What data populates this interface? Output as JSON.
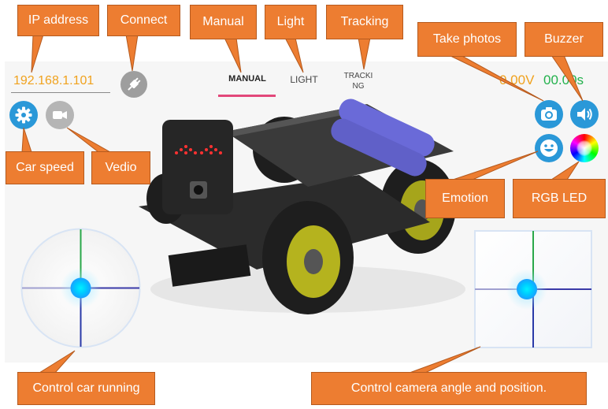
{
  "app": {
    "ip_address": "192.168.1.101",
    "tabs": [
      {
        "label": "MANUAL",
        "active": true
      },
      {
        "label": "LIGHT",
        "active": false
      },
      {
        "label": "TRACKING",
        "active": false
      }
    ],
    "status": {
      "voltage": "0.00V",
      "time": "00.00s"
    },
    "colors": {
      "accent_blue": "#2a98d8",
      "ip_orange": "#f0a21e",
      "tab_indicator": "#e2487a",
      "callout": "#ed7d31",
      "status_green": "#22b14c"
    },
    "icons": {
      "connect": "plug-icon",
      "car_speed": "gear-icon",
      "video": "video-camera-icon",
      "take_photos": "camera-icon",
      "buzzer": "speaker-icon",
      "emotion": "smiley-icon",
      "rgb_led": "color-wheel-icon"
    }
  },
  "callouts": {
    "ip_address": "IP address",
    "connect": "Connect",
    "manual": "Manual",
    "light": "Light",
    "tracking": "Tracking",
    "take_photos": "Take photos",
    "buzzer": "Buzzer",
    "car_speed": "Car speed",
    "video": "Vedio",
    "emotion": "Emotion",
    "rgb_led": "RGB LED",
    "control_car": "Control car running",
    "control_camera": "Control camera angle and position."
  }
}
